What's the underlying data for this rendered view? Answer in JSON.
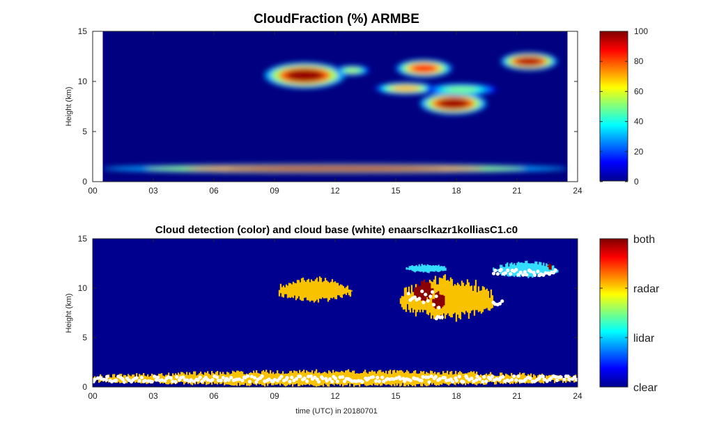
{
  "chart_data": [
    {
      "type": "heatmap",
      "title": "CloudFraction  (%) ARMBE",
      "ylabel": "Height (km)",
      "xlabel": "",
      "xlim": [
        0,
        24
      ],
      "ylim": [
        0,
        15
      ],
      "x_ticks": [
        0,
        3,
        6,
        9,
        12,
        15,
        18,
        21,
        24
      ],
      "x_tick_labels": [
        "00",
        "03",
        "06",
        "09",
        "12",
        "15",
        "18",
        "21",
        "24"
      ],
      "y_ticks": [
        0,
        5,
        10,
        15
      ],
      "y_tick_labels": [
        "0",
        "5",
        "10",
        "15"
      ],
      "data_x_range": [
        0.5,
        23.5
      ],
      "colorbar": {
        "colormap": "jet",
        "range": [
          0,
          100
        ],
        "ticks": [
          0,
          20,
          40,
          60,
          80,
          100
        ],
        "tick_labels": [
          "0",
          "20",
          "40",
          "60",
          "80",
          "100"
        ]
      },
      "cloud_features": [
        {
          "t0": 0.5,
          "t1": 23.5,
          "h": 1.3,
          "thick": 0.45,
          "value": 95
        },
        {
          "t0": 8.5,
          "t1": 12.5,
          "h": 10.6,
          "thick": 1.3,
          "value": 98
        },
        {
          "t0": 12.0,
          "t1": 13.7,
          "h": 11.1,
          "thick": 0.5,
          "value": 55
        },
        {
          "t0": 15.0,
          "t1": 17.8,
          "h": 11.3,
          "thick": 0.9,
          "value": 85
        },
        {
          "t0": 14.0,
          "t1": 17.0,
          "h": 9.3,
          "thick": 0.6,
          "value": 70
        },
        {
          "t0": 16.2,
          "t1": 19.5,
          "h": 7.8,
          "thick": 1.1,
          "value": 97
        },
        {
          "t0": 16.5,
          "t1": 20.0,
          "h": 9.2,
          "thick": 0.6,
          "value": 50
        },
        {
          "t0": 20.2,
          "t1": 23.0,
          "h": 12.0,
          "thick": 0.9,
          "value": 95
        }
      ]
    },
    {
      "type": "heatmap",
      "title": "Cloud detection (color) and cloud base (white) enaarsclkazr1kolliasC1.c0",
      "ylabel": "Height (km)",
      "xlabel": "time (UTC) in 20180701",
      "xlim": [
        0,
        24
      ],
      "ylim": [
        0,
        15
      ],
      "x_ticks": [
        0,
        3,
        6,
        9,
        12,
        15,
        18,
        21,
        24
      ],
      "x_tick_labels": [
        "00",
        "03",
        "06",
        "09",
        "12",
        "15",
        "18",
        "21",
        "24"
      ],
      "y_ticks": [
        0,
        5,
        10,
        15
      ],
      "y_tick_labels": [
        "0",
        "5",
        "10",
        "15"
      ],
      "colorbar": {
        "colormap": "jet",
        "categories": [
          "clear",
          "lidar",
          "radar",
          "both"
        ]
      },
      "detection_regions": [
        {
          "t0": 0.0,
          "t1": 24.0,
          "h0": 0.0,
          "h1": 1.8,
          "class": "radar"
        },
        {
          "t0": 9.2,
          "t1": 12.8,
          "h0": 8.5,
          "h1": 11.2,
          "class": "radar"
        },
        {
          "t0": 15.2,
          "t1": 19.8,
          "h0": 6.5,
          "h1": 11.5,
          "class": "radar"
        },
        {
          "t0": 15.9,
          "t1": 16.8,
          "h0": 8.5,
          "h1": 11.0,
          "class": "both"
        },
        {
          "t0": 16.8,
          "t1": 17.4,
          "h0": 7.7,
          "h1": 9.7,
          "class": "both"
        },
        {
          "t0": 15.5,
          "t1": 17.5,
          "h0": 11.5,
          "h1": 12.5,
          "class": "lidar"
        },
        {
          "t0": 19.8,
          "t1": 23.0,
          "h0": 11.0,
          "h1": 12.8,
          "class": "lidar"
        },
        {
          "t0": 22.5,
          "t1": 22.7,
          "h0": 11.8,
          "h1": 12.6,
          "class": "both"
        }
      ],
      "cloud_base_segments": [
        {
          "t0": 0.0,
          "t1": 24.0,
          "h": 0.8,
          "spread": 0.6
        },
        {
          "t0": 15.6,
          "t1": 17.2,
          "h": 8.8,
          "spread": 2.0
        },
        {
          "t0": 17.0,
          "t1": 17.3,
          "h": 7.0,
          "spread": 0.3
        },
        {
          "t0": 19.8,
          "t1": 20.3,
          "h": 8.5,
          "spread": 0.6
        },
        {
          "t0": 19.8,
          "t1": 23.0,
          "h": 11.6,
          "spread": 0.6
        }
      ]
    }
  ]
}
